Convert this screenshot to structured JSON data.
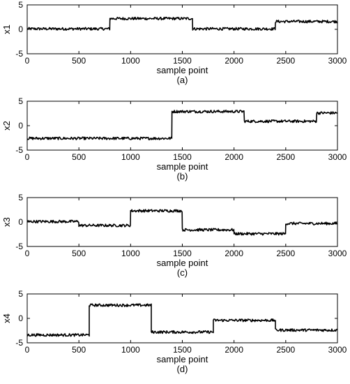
{
  "chart_data": [
    {
      "type": "line",
      "caption": "(a)",
      "xlabel": "sample point",
      "ylabel": "x1",
      "xlim": [
        0,
        3000
      ],
      "ylim": [
        -5,
        5
      ],
      "xticks": [
        0,
        500,
        1000,
        1500,
        2000,
        2500,
        3000
      ],
      "yticks": [
        5,
        0,
        -5
      ],
      "grid": false,
      "line_color": "#000000",
      "segments": [
        {
          "x_start": 0,
          "x_end": 800,
          "y": 0.1
        },
        {
          "x_start": 800,
          "x_end": 1600,
          "y": 2.2
        },
        {
          "x_start": 1600,
          "x_end": 2400,
          "y": 0.1
        },
        {
          "x_start": 2400,
          "x_end": 3000,
          "y": 1.6
        }
      ]
    },
    {
      "type": "line",
      "caption": "(b)",
      "xlabel": "sample point",
      "ylabel": "x2",
      "xlim": [
        0,
        3000
      ],
      "ylim": [
        -5,
        5
      ],
      "xticks": [
        0,
        500,
        1000,
        1500,
        2000,
        2500,
        3000
      ],
      "yticks": [
        5,
        0,
        -5
      ],
      "grid": false,
      "line_color": "#000000",
      "segments": [
        {
          "x_start": 0,
          "x_end": 1400,
          "y": -2.6
        },
        {
          "x_start": 1400,
          "x_end": 2100,
          "y": 2.9
        },
        {
          "x_start": 2100,
          "x_end": 2800,
          "y": 0.9
        },
        {
          "x_start": 2800,
          "x_end": 3000,
          "y": 2.6
        }
      ]
    },
    {
      "type": "line",
      "caption": "(c)",
      "xlabel": "sample point",
      "ylabel": "x3",
      "xlim": [
        0,
        3000
      ],
      "ylim": [
        -5,
        5
      ],
      "xticks": [
        0,
        500,
        1000,
        1500,
        2000,
        2500,
        3000
      ],
      "yticks": [
        5,
        0,
        -5
      ],
      "grid": false,
      "line_color": "#000000",
      "segments": [
        {
          "x_start": 0,
          "x_end": 500,
          "y": 0.1
        },
        {
          "x_start": 500,
          "x_end": 1000,
          "y": -0.7
        },
        {
          "x_start": 1000,
          "x_end": 1500,
          "y": 2.3
        },
        {
          "x_start": 1500,
          "x_end": 2000,
          "y": -1.6
        },
        {
          "x_start": 2000,
          "x_end": 2500,
          "y": -2.4
        },
        {
          "x_start": 2500,
          "x_end": 3000,
          "y": -0.3
        }
      ]
    },
    {
      "type": "line",
      "caption": "(d)",
      "xlabel": "sample point",
      "ylabel": "x4",
      "xlim": [
        0,
        3000
      ],
      "ylim": [
        -5,
        5
      ],
      "xticks": [
        0,
        500,
        1000,
        1500,
        2000,
        2500,
        3000
      ],
      "yticks": [
        5,
        0,
        -5
      ],
      "grid": false,
      "line_color": "#000000",
      "segments": [
        {
          "x_start": 0,
          "x_end": 600,
          "y": -3.4
        },
        {
          "x_start": 600,
          "x_end": 1200,
          "y": 2.7
        },
        {
          "x_start": 1200,
          "x_end": 1800,
          "y": -2.8
        },
        {
          "x_start": 1800,
          "x_end": 2400,
          "y": -0.4
        },
        {
          "x_start": 2400,
          "x_end": 3000,
          "y": -2.4
        }
      ]
    }
  ]
}
